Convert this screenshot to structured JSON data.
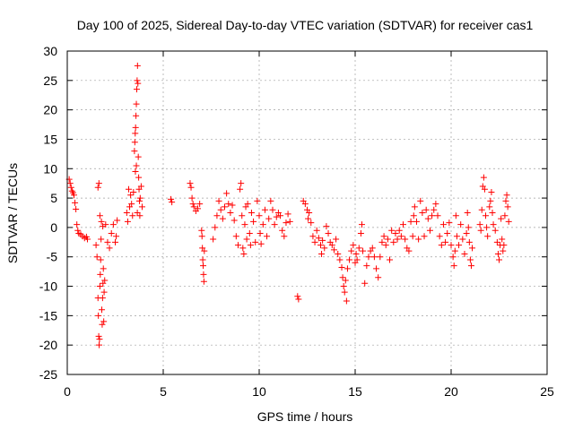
{
  "chart_data": {
    "type": "scatter",
    "title": "Day 100 of 2025, Sidereal Day-to-day VTEC variation (SDTVAR) for receiver cas1",
    "xlabel": "GPS time / hours",
    "ylabel": "SDTVAR / TECUs",
    "xlim": [
      0,
      25
    ],
    "ylim": [
      -25,
      30
    ],
    "xticks": [
      0,
      5,
      10,
      15,
      20,
      25
    ],
    "yticks": [
      -25,
      -20,
      -15,
      -10,
      -5,
      0,
      5,
      10,
      15,
      20,
      25,
      30
    ],
    "grid": true,
    "marker": "plus",
    "color": "#ff0000",
    "series": [
      {
        "name": "SDTVAR",
        "points": [
          [
            0.1,
            8.2
          ],
          [
            0.15,
            7.5
          ],
          [
            0.2,
            6.8
          ],
          [
            0.25,
            6.2
          ],
          [
            0.3,
            5.9
          ],
          [
            0.35,
            5.5
          ],
          [
            0.4,
            4.2
          ],
          [
            0.45,
            3.1
          ],
          [
            0.5,
            0.5
          ],
          [
            0.55,
            -0.5
          ],
          [
            0.6,
            -1.0
          ],
          [
            0.7,
            -1.2
          ],
          [
            0.8,
            -1.5
          ],
          [
            0.9,
            -1.8
          ],
          [
            1.0,
            -1.6
          ],
          [
            1.05,
            -2.0
          ],
          [
            1.5,
            -3.0
          ],
          [
            1.55,
            -5.0
          ],
          [
            1.6,
            -12.0
          ],
          [
            1.62,
            -15.0
          ],
          [
            1.64,
            -18.5
          ],
          [
            1.66,
            -20.0
          ],
          [
            1.68,
            -19.0
          ],
          [
            1.7,
            -10.0
          ],
          [
            1.72,
            -8.0
          ],
          [
            1.74,
            -5.5
          ],
          [
            1.76,
            -2.0
          ],
          [
            1.78,
            1.0
          ],
          [
            1.8,
            -14.0
          ],
          [
            1.82,
            -16.5
          ],
          [
            1.84,
            -12.0
          ],
          [
            1.86,
            -9.5
          ],
          [
            1.88,
            -7.0
          ],
          [
            1.9,
            -16.0
          ],
          [
            1.92,
            -11.0
          ],
          [
            1.95,
            -9.0
          ],
          [
            1.6,
            6.8
          ],
          [
            1.65,
            7.5
          ],
          [
            1.7,
            2.0
          ],
          [
            1.85,
            0.2
          ],
          [
            2.0,
            0.5
          ],
          [
            2.1,
            -2.5
          ],
          [
            2.2,
            -3.5
          ],
          [
            2.3,
            -1.0
          ],
          [
            2.4,
            0.5
          ],
          [
            2.5,
            -2.5
          ],
          [
            2.55,
            -1.5
          ],
          [
            2.6,
            1.2
          ],
          [
            3.1,
            2.5
          ],
          [
            3.15,
            1.0
          ],
          [
            3.2,
            6.5
          ],
          [
            3.25,
            3.5
          ],
          [
            3.3,
            5.5
          ],
          [
            3.35,
            4.0
          ],
          [
            3.4,
            2.0
          ],
          [
            3.45,
            6.0
          ],
          [
            3.5,
            13.0
          ],
          [
            3.52,
            14.5
          ],
          [
            3.54,
            16.0
          ],
          [
            3.56,
            17.0
          ],
          [
            3.58,
            19.0
          ],
          [
            3.6,
            21.0
          ],
          [
            3.62,
            23.5
          ],
          [
            3.64,
            25.0
          ],
          [
            3.66,
            27.5
          ],
          [
            3.68,
            24.5
          ],
          [
            3.7,
            12.0
          ],
          [
            3.72,
            8.5
          ],
          [
            3.74,
            6.5
          ],
          [
            3.76,
            4.5
          ],
          [
            3.78,
            2.0
          ],
          [
            3.8,
            5.0
          ],
          [
            3.85,
            7.0
          ],
          [
            3.9,
            3.5
          ],
          [
            3.55,
            9.5
          ],
          [
            3.6,
            10.5
          ],
          [
            3.65,
            2.5
          ],
          [
            5.4,
            4.8
          ],
          [
            5.45,
            4.3
          ],
          [
            6.4,
            7.5
          ],
          [
            6.45,
            6.8
          ],
          [
            6.5,
            5.0
          ],
          [
            6.55,
            4.0
          ],
          [
            6.6,
            3.5
          ],
          [
            6.7,
            2.8
          ],
          [
            6.8,
            3.2
          ],
          [
            6.9,
            4.0
          ],
          [
            7.0,
            -0.5
          ],
          [
            7.02,
            -1.5
          ],
          [
            7.04,
            -3.5
          ],
          [
            7.06,
            -5.5
          ],
          [
            7.08,
            -6.5
          ],
          [
            7.1,
            -8.0
          ],
          [
            7.12,
            -9.2
          ],
          [
            7.14,
            -4.0
          ],
          [
            7.6,
            -2.0
          ],
          [
            7.7,
            0.0
          ],
          [
            7.8,
            2.0
          ],
          [
            7.9,
            4.5
          ],
          [
            8.0,
            3.0
          ],
          [
            8.1,
            1.5
          ],
          [
            8.2,
            3.5
          ],
          [
            8.3,
            5.8
          ],
          [
            8.4,
            4.0
          ],
          [
            8.5,
            2.5
          ],
          [
            8.6,
            3.8
          ],
          [
            8.7,
            1.2
          ],
          [
            8.8,
            -1.5
          ],
          [
            8.9,
            -3.0
          ],
          [
            9.0,
            6.5
          ],
          [
            9.05,
            7.5
          ],
          [
            9.1,
            2.0
          ],
          [
            9.15,
            -3.5
          ],
          [
            9.2,
            -4.5
          ],
          [
            9.25,
            0.5
          ],
          [
            9.3,
            3.5
          ],
          [
            9.35,
            -2.0
          ],
          [
            9.4,
            4.0
          ],
          [
            9.5,
            -1.0
          ],
          [
            9.55,
            -3.0
          ],
          [
            9.6,
            2.5
          ],
          [
            9.7,
            1.0
          ],
          [
            9.8,
            -2.5
          ],
          [
            9.9,
            4.5
          ],
          [
            10.0,
            2.0
          ],
          [
            10.05,
            -1.0
          ],
          [
            10.1,
            -2.8
          ],
          [
            10.2,
            0.5
          ],
          [
            10.3,
            3.0
          ],
          [
            10.4,
            -1.5
          ],
          [
            10.5,
            1.5
          ],
          [
            10.6,
            4.5
          ],
          [
            10.7,
            3.0
          ],
          [
            10.8,
            0.5
          ],
          [
            10.9,
            1.8
          ],
          [
            11.0,
            2.5
          ],
          [
            11.1,
            2.0
          ],
          [
            11.2,
            -0.5
          ],
          [
            11.3,
            -1.5
          ],
          [
            11.4,
            0.8
          ],
          [
            11.5,
            2.3
          ],
          [
            11.6,
            1.0
          ],
          [
            12.0,
            -11.7
          ],
          [
            12.05,
            -12.2
          ],
          [
            12.3,
            4.5
          ],
          [
            12.4,
            4.0
          ],
          [
            12.5,
            3.0
          ],
          [
            12.55,
            1.5
          ],
          [
            12.6,
            2.5
          ],
          [
            12.7,
            0.8
          ],
          [
            12.8,
            -1.5
          ],
          [
            12.9,
            -2.5
          ],
          [
            13.0,
            -0.5
          ],
          [
            13.1,
            -1.8
          ],
          [
            13.2,
            -3.0
          ],
          [
            13.25,
            -4.5
          ],
          [
            13.3,
            -2.2
          ],
          [
            13.4,
            -3.5
          ],
          [
            13.5,
            0.2
          ],
          [
            13.6,
            -1.0
          ],
          [
            13.7,
            -2.5
          ],
          [
            13.8,
            -3.0
          ],
          [
            13.9,
            -3.8
          ],
          [
            14.0,
            -2.0
          ],
          [
            14.1,
            -4.5
          ],
          [
            14.2,
            -5.5
          ],
          [
            14.3,
            -6.8
          ],
          [
            14.35,
            -8.5
          ],
          [
            14.4,
            -10.0
          ],
          [
            14.45,
            -11.0
          ],
          [
            14.5,
            -9.0
          ],
          [
            14.55,
            -12.5
          ],
          [
            14.6,
            -7.0
          ],
          [
            14.7,
            -5.5
          ],
          [
            14.8,
            -4.0
          ],
          [
            14.9,
            -3.0
          ],
          [
            15.0,
            -6.0
          ],
          [
            15.05,
            -4.5
          ],
          [
            15.1,
            -5.5
          ],
          [
            15.2,
            -3.5
          ],
          [
            15.3,
            -1.0
          ],
          [
            15.35,
            0.5
          ],
          [
            15.4,
            -4.0
          ],
          [
            15.5,
            -9.5
          ],
          [
            15.6,
            -6.5
          ],
          [
            15.7,
            -5.0
          ],
          [
            15.8,
            -4.0
          ],
          [
            15.9,
            -3.5
          ],
          [
            16.0,
            -5.0
          ],
          [
            16.1,
            -7.0
          ],
          [
            16.2,
            -8.5
          ],
          [
            16.3,
            -5.0
          ],
          [
            16.4,
            -2.5
          ],
          [
            16.5,
            -1.5
          ],
          [
            16.6,
            -3.0
          ],
          [
            16.7,
            -2.0
          ],
          [
            16.8,
            -5.5
          ],
          [
            16.9,
            -0.5
          ],
          [
            17.0,
            -2.5
          ],
          [
            17.1,
            -1.0
          ],
          [
            17.2,
            -2.0
          ],
          [
            17.3,
            -0.5
          ],
          [
            17.4,
            -1.5
          ],
          [
            17.5,
            0.5
          ],
          [
            17.6,
            -2.0
          ],
          [
            17.7,
            -3.5
          ],
          [
            17.8,
            -4.0
          ],
          [
            17.9,
            1.0
          ],
          [
            18.0,
            -1.5
          ],
          [
            18.05,
            2.0
          ],
          [
            18.1,
            3.5
          ],
          [
            18.2,
            1.0
          ],
          [
            18.3,
            -2.0
          ],
          [
            18.4,
            4.5
          ],
          [
            18.5,
            2.5
          ],
          [
            18.6,
            -1.5
          ],
          [
            18.7,
            3.0
          ],
          [
            18.8,
            1.5
          ],
          [
            18.9,
            -0.5
          ],
          [
            19.0,
            2.0
          ],
          [
            19.1,
            3.0
          ],
          [
            19.2,
            4.0
          ],
          [
            19.3,
            2.0
          ],
          [
            19.4,
            -1.5
          ],
          [
            19.5,
            -3.0
          ],
          [
            19.6,
            0.5
          ],
          [
            19.7,
            -2.5
          ],
          [
            19.8,
            -1.0
          ],
          [
            19.9,
            0.8
          ],
          [
            20.0,
            -3.0
          ],
          [
            20.1,
            -5.0
          ],
          [
            20.15,
            -6.5
          ],
          [
            20.2,
            -4.0
          ],
          [
            20.25,
            2.0
          ],
          [
            20.3,
            -1.5
          ],
          [
            20.4,
            -3.0
          ],
          [
            20.5,
            0.5
          ],
          [
            20.6,
            -2.0
          ],
          [
            20.7,
            -4.5
          ],
          [
            20.8,
            -1.0
          ],
          [
            20.85,
            2.5
          ],
          [
            20.9,
            0.0
          ],
          [
            20.95,
            -2.5
          ],
          [
            21.0,
            -5.5
          ],
          [
            21.05,
            -6.5
          ],
          [
            21.1,
            -3.5
          ],
          [
            21.5,
            0.5
          ],
          [
            21.55,
            -0.5
          ],
          [
            21.6,
            3.0
          ],
          [
            21.65,
            7.0
          ],
          [
            21.7,
            8.5
          ],
          [
            21.75,
            6.5
          ],
          [
            21.8,
            2.0
          ],
          [
            21.85,
            0.0
          ],
          [
            21.9,
            -1.5
          ],
          [
            22.0,
            3.5
          ],
          [
            22.05,
            4.5
          ],
          [
            22.1,
            6.0
          ],
          [
            22.15,
            2.5
          ],
          [
            22.2,
            0.5
          ],
          [
            22.3,
            -0.5
          ],
          [
            22.4,
            -2.5
          ],
          [
            22.45,
            -4.5
          ],
          [
            22.5,
            -5.5
          ],
          [
            22.55,
            -3.0
          ],
          [
            22.6,
            1.5
          ],
          [
            22.65,
            -2.0
          ],
          [
            22.7,
            -4.0
          ],
          [
            22.75,
            -3.0
          ],
          [
            22.8,
            2.0
          ],
          [
            22.85,
            4.5
          ],
          [
            22.9,
            5.5
          ],
          [
            22.95,
            3.5
          ],
          [
            23.0,
            1.0
          ]
        ]
      }
    ]
  }
}
